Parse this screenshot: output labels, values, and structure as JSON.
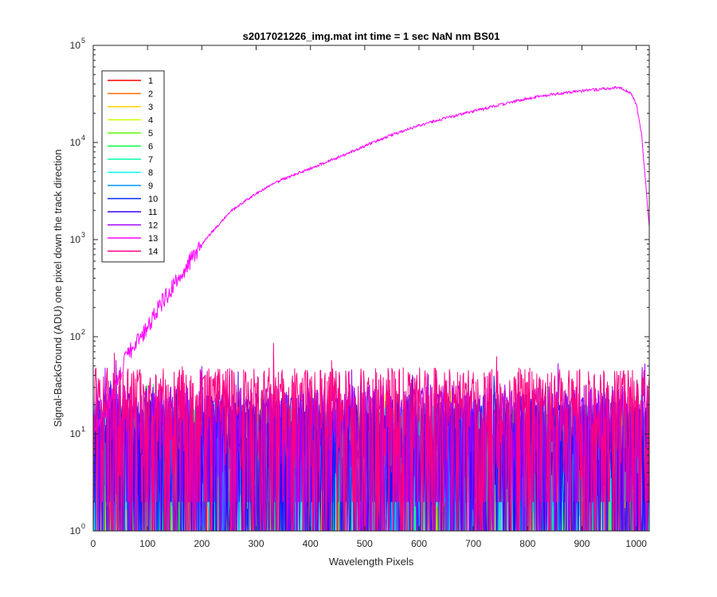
{
  "chart_data": {
    "type": "line",
    "title": "s2017021226_img.mat int time = 1 sec  NaN nm BS01",
    "xlabel": "Wavelength Pixels",
    "ylabel": "Signal-BackGround (ADU) one pixel down the track direction",
    "xlim": [
      0,
      1024
    ],
    "ylim": [
      1,
      100000
    ],
    "yscale": "log",
    "grid": false,
    "legend_position": "top-left",
    "x_ticks": [
      0,
      100,
      200,
      300,
      400,
      500,
      600,
      700,
      800,
      900,
      1000
    ],
    "x_tick_labels": [
      "0",
      "100",
      "200",
      "300",
      "400",
      "500",
      "600",
      "700",
      "800",
      "900",
      "1000"
    ],
    "y_ticks": [
      1,
      10,
      100,
      1000,
      10000,
      100000
    ],
    "y_tick_labels": [
      {
        "base": "10",
        "exp": "0"
      },
      {
        "base": "10",
        "exp": "1"
      },
      {
        "base": "10",
        "exp": "2"
      },
      {
        "base": "10",
        "exp": "3"
      },
      {
        "base": "10",
        "exp": "4"
      },
      {
        "base": "10",
        "exp": "5"
      }
    ],
    "series": [
      {
        "name": "1",
        "color": "#ff0000",
        "kind": "noise",
        "level": 8
      },
      {
        "name": "2",
        "color": "#ff6a00",
        "kind": "noise",
        "level": 8
      },
      {
        "name": "3",
        "color": "#ffd200",
        "kind": "noise",
        "level": 8
      },
      {
        "name": "4",
        "color": "#c8ff00",
        "kind": "noise",
        "level": 8
      },
      {
        "name": "5",
        "color": "#5aff00",
        "kind": "noise",
        "level": 9
      },
      {
        "name": "6",
        "color": "#00ff40",
        "kind": "noise",
        "level": 9
      },
      {
        "name": "7",
        "color": "#00ffa8",
        "kind": "noise",
        "level": 9
      },
      {
        "name": "8",
        "color": "#00ffff",
        "kind": "noise",
        "level": 10
      },
      {
        "name": "9",
        "color": "#0096ff",
        "kind": "noise",
        "level": 10
      },
      {
        "name": "10",
        "color": "#0028ff",
        "kind": "noise",
        "level": 11
      },
      {
        "name": "11",
        "color": "#3c00ff",
        "kind": "noise",
        "level": 13
      },
      {
        "name": "12",
        "color": "#a000ff",
        "kind": "noise",
        "level": 16
      },
      {
        "name": "13",
        "color": "#ff00ff",
        "kind": "signal",
        "x": [
          0,
          25,
          40,
          60,
          80,
          100,
          120,
          150,
          200,
          250,
          300,
          350,
          400,
          450,
          500,
          550,
          600,
          650,
          700,
          750,
          800,
          850,
          900,
          940,
          960,
          975,
          990,
          1000,
          1010,
          1020,
          1024
        ],
        "y": [
          10,
          18,
          30,
          60,
          90,
          120,
          200,
          350,
          900,
          1900,
          3000,
          4200,
          5400,
          7000,
          9200,
          12000,
          15000,
          17800,
          21000,
          24500,
          28500,
          31500,
          34000,
          35500,
          36500,
          36000,
          32000,
          25000,
          12000,
          2500,
          1300
        ]
      },
      {
        "name": "14",
        "color": "#ff0080",
        "kind": "noise",
        "level": 24
      }
    ]
  }
}
